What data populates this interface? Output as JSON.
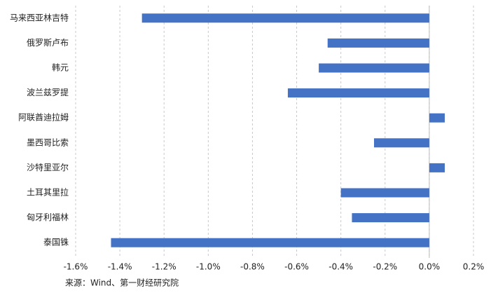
{
  "chart_data": {
    "type": "bar",
    "orientation": "horizontal",
    "categories": [
      "马来西亚林吉特",
      "俄罗斯卢布",
      "韩元",
      "波兰兹罗提",
      "阿联酋迪拉姆",
      "墨西哥比索",
      "沙特里亚尔",
      "土耳其里拉",
      "匈牙利福林",
      "泰国铢"
    ],
    "values": [
      -1.3,
      -0.46,
      -0.5,
      -0.64,
      0.07,
      -0.25,
      0.07,
      -0.4,
      -0.35,
      -1.44
    ],
    "color": "#4472c4",
    "xlim": [
      -1.6,
      0.2
    ],
    "xticks": [
      {
        "value": -1.6,
        "label": "-1.6%"
      },
      {
        "value": -1.4,
        "label": "-1.4%"
      },
      {
        "value": -1.2,
        "label": "-1.2%"
      },
      {
        "value": -1.0,
        "label": "-1.0%"
      },
      {
        "value": -0.8,
        "label": "-0.8%"
      },
      {
        "value": -0.6,
        "label": "-0.6%"
      },
      {
        "value": -0.4,
        "label": "-0.4%"
      },
      {
        "value": -0.2,
        "label": "-0.2%"
      },
      {
        "value": 0,
        "label": "0.0%"
      },
      {
        "value": 0.2,
        "label": "0.2%"
      }
    ],
    "grid": true,
    "source": "来源：Wind、第一财经研究院"
  }
}
